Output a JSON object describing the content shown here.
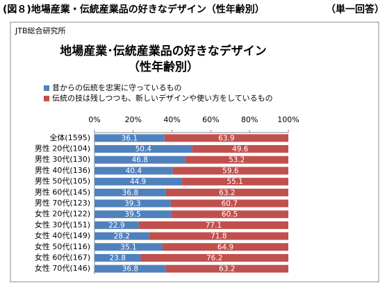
{
  "page": {
    "heading": "(図８)地場産業・伝統産業品の好きなデザイン（性年齢別）",
    "answer_type": "（単一回答）"
  },
  "chart_data": {
    "type": "stacked-bar-horizontal",
    "source": "JTB総合研究所",
    "title": "地場産業･伝統産業品の好きなデザイン",
    "subtitle": "（性年齢別）",
    "categories": [
      "全体(1595)",
      "男性 20代(104)",
      "男性 30代(130)",
      "男性 40代(136)",
      "男性 50代(105)",
      "男性 60代(145)",
      "男性 70代(123)",
      "女性 20代(122)",
      "女性 30代(151)",
      "女性 40代(149)",
      "女性 50代(116)",
      "女性 60代(167)",
      "女性 70代(146)"
    ],
    "series": [
      {
        "name": "昔からの伝統を忠実に守っているもの",
        "color": "#4f81bd",
        "values": [
          36.1,
          50.4,
          46.8,
          40.4,
          44.9,
          36.8,
          39.3,
          39.5,
          22.9,
          28.2,
          35.1,
          23.8,
          36.8
        ]
      },
      {
        "name": "伝統の技は残しつつも、新しいデザインや使い方をしているもの",
        "color": "#c0504d",
        "values": [
          63.9,
          49.6,
          53.2,
          59.6,
          55.1,
          63.2,
          60.7,
          60.5,
          77.1,
          71.8,
          64.9,
          76.2,
          63.2
        ]
      }
    ],
    "xlim": [
      0,
      100
    ],
    "xticks": [
      {
        "value": 0,
        "label": "0%"
      },
      {
        "value": 20,
        "label": "20%"
      },
      {
        "value": 40,
        "label": "40%"
      },
      {
        "value": 60,
        "label": "60%"
      },
      {
        "value": 80,
        "label": "80%"
      },
      {
        "value": 100,
        "label": "100%"
      }
    ],
    "legend": "top-left"
  }
}
